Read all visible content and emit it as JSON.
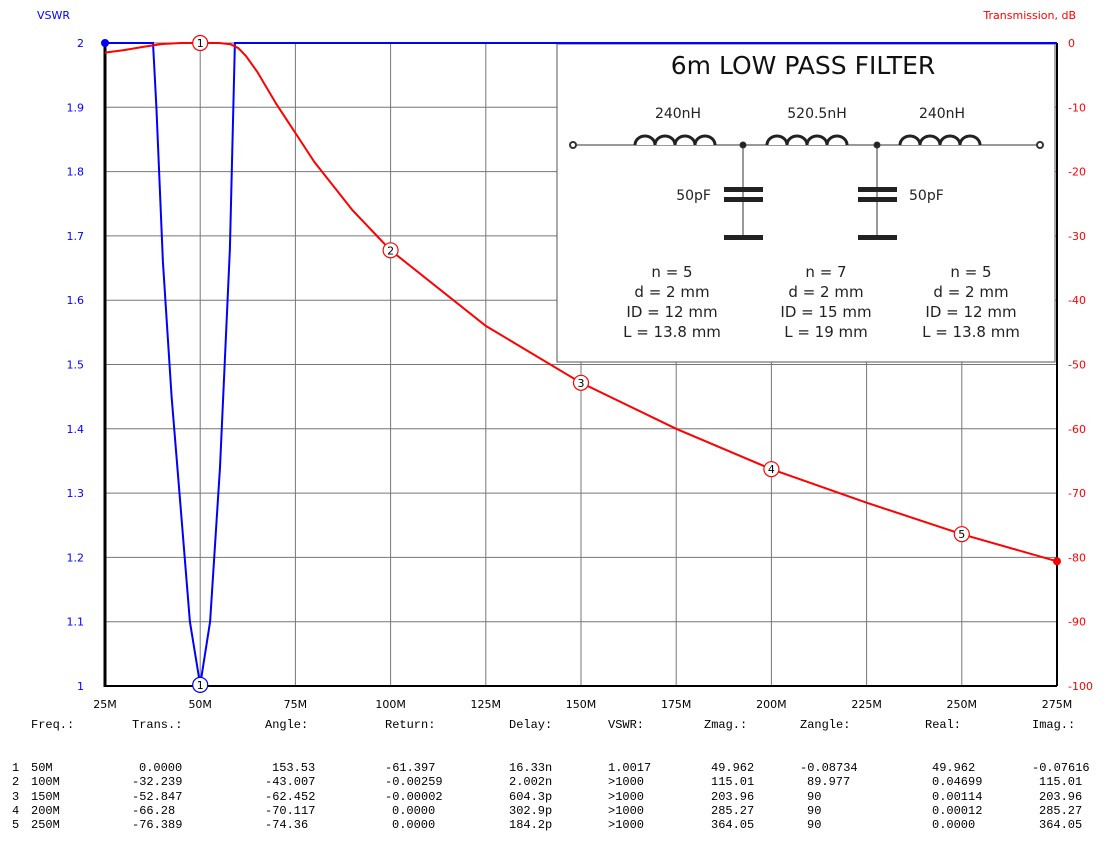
{
  "chart_data": {
    "type": "line",
    "left_axis_label": "VSWR",
    "right_axis_label": "Transmission, dB",
    "x_ticks": [
      "25M",
      "50M",
      "75M",
      "100M",
      "125M",
      "150M",
      "175M",
      "200M",
      "225M",
      "250M",
      "275M"
    ],
    "xlim": [
      25,
      275
    ],
    "left_ticks": [
      "1",
      "1.1",
      "1.2",
      "1.3",
      "1.4",
      "1.5",
      "1.6",
      "1.7",
      "1.8",
      "1.9",
      "2"
    ],
    "left_ylim": [
      1,
      2
    ],
    "right_ticks": [
      "-100",
      "-90",
      "-80",
      "-70",
      "-60",
      "-50",
      "-40",
      "-30",
      "-20",
      "-10",
      "0"
    ],
    "right_ylim": [
      -100,
      0
    ],
    "grid": true,
    "series": [
      {
        "name": "VSWR",
        "axis": "left",
        "color": "#0000ff",
        "points": [
          [
            25,
            2
          ],
          [
            37.6,
            2
          ],
          [
            38.5,
            1.9
          ],
          [
            40.2,
            1.66
          ],
          [
            42.5,
            1.45
          ],
          [
            44.7,
            1.29
          ],
          [
            47.3,
            1.1
          ],
          [
            50,
            1.0017
          ],
          [
            52.6,
            1.1
          ],
          [
            55.2,
            1.34
          ],
          [
            57.8,
            1.68
          ],
          [
            59.1,
            2
          ],
          [
            275,
            2
          ]
        ]
      },
      {
        "name": "Transmission",
        "axis": "right",
        "color": "#ff0000",
        "points": [
          [
            25,
            -1.5
          ],
          [
            30,
            -1.1
          ],
          [
            35,
            -0.6
          ],
          [
            40,
            -0.15
          ],
          [
            45,
            0
          ],
          [
            50,
            0
          ],
          [
            55,
            0
          ],
          [
            58,
            -0.2
          ],
          [
            60,
            -0.8
          ],
          [
            62,
            -2
          ],
          [
            65,
            -4.5
          ],
          [
            70,
            -9.5
          ],
          [
            75,
            -14
          ],
          [
            80,
            -18.5
          ],
          [
            90,
            -26
          ],
          [
            100,
            -32.239
          ],
          [
            125,
            -44
          ],
          [
            150,
            -52.847
          ],
          [
            175,
            -60
          ],
          [
            200,
            -66.28
          ],
          [
            225,
            -71.5
          ],
          [
            250,
            -76.389
          ],
          [
            275,
            -80.6
          ]
        ]
      }
    ],
    "markers": [
      {
        "label": "1",
        "series": "VSWR",
        "x": 50,
        "y": 1.0017
      },
      {
        "label": "1",
        "series": "Transmission",
        "x": 50,
        "y": 0
      },
      {
        "label": "2",
        "series": "Transmission",
        "x": 100,
        "y": -32.239
      },
      {
        "label": "3",
        "series": "Transmission",
        "x": 150,
        "y": -52.847
      },
      {
        "label": "4",
        "series": "Transmission",
        "x": 200,
        "y": -66.28
      },
      {
        "label": "5",
        "series": "Transmission",
        "x": 250,
        "y": -76.389
      }
    ]
  },
  "inset": {
    "title": "6m LOW PASS FILTER",
    "inductors": [
      "240nH",
      "520.5nH",
      "240nH"
    ],
    "capacitors": [
      "50pF",
      "50pF"
    ],
    "coils": [
      [
        "n = 5",
        "d = 2 mm",
        "ID = 12 mm",
        "L = 13.8 mm"
      ],
      [
        "n = 7",
        "d = 2 mm",
        "ID = 15 mm",
        "L = 19 mm"
      ],
      [
        "n = 5",
        "d = 2 mm",
        "ID = 12 mm",
        "L = 13.8 mm"
      ]
    ]
  },
  "table": {
    "headers": [
      "Freq.:",
      "Trans.:",
      "Angle:",
      "Return:",
      "Delay:",
      "VSWR:",
      "Zmag.:",
      "Zangle:",
      "Real:",
      "Imag.:"
    ],
    "rows": [
      [
        "1",
        "50M",
        "0.0000",
        "153.53",
        "-61.397",
        "16.33n",
        "1.0017",
        "49.962",
        "-0.08734",
        "49.962",
        "-0.07616"
      ],
      [
        "2",
        "100M",
        "-32.239",
        "-43.007",
        "-0.00259",
        "2.002n",
        ">1000",
        "115.01",
        "89.977",
        "0.04699",
        "115.01"
      ],
      [
        "3",
        "150M",
        "-52.847",
        "-62.452",
        "-0.00002",
        "604.3p",
        ">1000",
        "203.96",
        "90",
        "0.00114",
        "203.96"
      ],
      [
        "4",
        "200M",
        "-66.28",
        "-70.117",
        "0.0000",
        "302.9p",
        ">1000",
        "285.27",
        "90",
        "0.00012",
        "285.27"
      ],
      [
        "5",
        "250M",
        "-76.389",
        "-74.36",
        "0.0000",
        "184.2p",
        ">1000",
        "364.05",
        "90",
        "0.0000",
        "364.05"
      ]
    ]
  }
}
